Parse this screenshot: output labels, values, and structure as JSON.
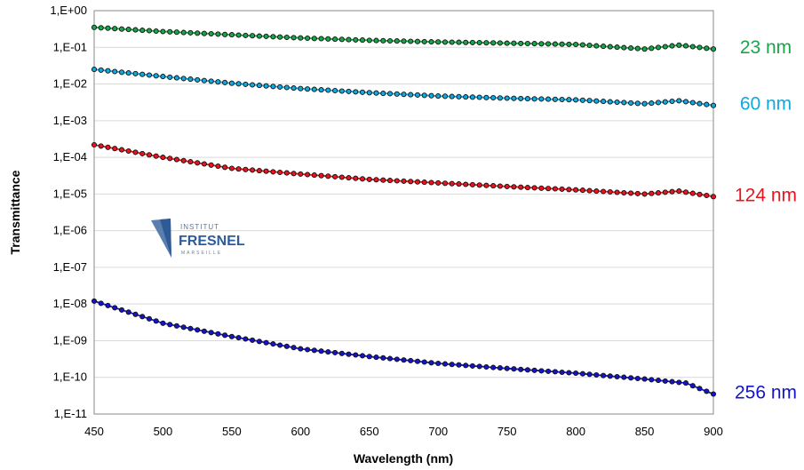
{
  "chart_data": {
    "type": "scatter",
    "xlabel": "Wavelength (nm)",
    "ylabel": "Transmittance",
    "xlim": [
      450,
      900
    ],
    "x_ticks": [
      "450",
      "500",
      "550",
      "600",
      "650",
      "700",
      "750",
      "800",
      "850",
      "900"
    ],
    "y_scale": "log",
    "ylim_exponent": [
      -11,
      0
    ],
    "y_ticks": [
      "1,E-11",
      "1,E-10",
      "1,E-09",
      "1,E-08",
      "1,E-07",
      "1,E-06",
      "1,E-05",
      "1,E-04",
      "1,E-03",
      "1,E-02",
      "1,E-01",
      "1,E+00"
    ],
    "grid": "horizontal",
    "legend": "right-side labels",
    "series": [
      {
        "name": "23 nm",
        "color": "#1aa54b",
        "x": [
          450,
          500,
          550,
          600,
          650,
          700,
          750,
          800,
          850,
          875,
          900
        ],
        "y": [
          0.35,
          0.27,
          0.22,
          0.18,
          0.155,
          0.14,
          0.13,
          0.12,
          0.09,
          0.115,
          0.09
        ]
      },
      {
        "name": "60 nm",
        "color": "#12a9df",
        "x": [
          450,
          500,
          550,
          600,
          650,
          700,
          750,
          800,
          850,
          875,
          900
        ],
        "y": [
          0.025,
          0.016,
          0.0105,
          0.0075,
          0.0058,
          0.0047,
          0.0041,
          0.0037,
          0.0029,
          0.0035,
          0.0026
        ]
      },
      {
        "name": "124 nm",
        "color": "#e8141e",
        "x": [
          450,
          500,
          550,
          600,
          650,
          700,
          750,
          800,
          850,
          875,
          900
        ],
        "y": [
          0.00022,
          0.0001,
          5e-05,
          3.5e-05,
          2.5e-05,
          2e-05,
          1.6e-05,
          1.3e-05,
          1e-05,
          1.2e-05,
          8.5e-06
        ]
      },
      {
        "name": "256 nm",
        "color": "#1414c8",
        "x": [
          450,
          500,
          550,
          600,
          650,
          700,
          750,
          800,
          850,
          880,
          900
        ],
        "y": [
          1.2e-08,
          3e-09,
          1.3e-09,
          6e-10,
          3.7e-10,
          2.4e-10,
          1.75e-10,
          1.3e-10,
          9e-11,
          7e-11,
          3.5e-11
        ]
      }
    ]
  },
  "logo": {
    "line1": "INSTITUT",
    "line2": "FRESNEL",
    "line3": "MARSEILLE"
  }
}
